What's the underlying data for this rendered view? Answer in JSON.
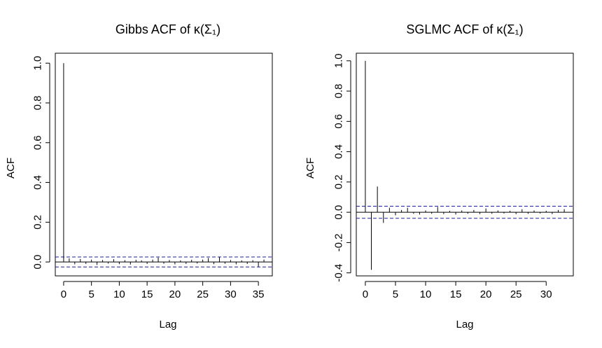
{
  "chart_data": [
    {
      "type": "bar",
      "title": "Gibbs ACF of κ(Σ₁)",
      "xlabel": "Lag",
      "ylabel": "ACF",
      "xlim": [
        -1.5,
        37.5
      ],
      "ylim": [
        -0.07,
        1.05
      ],
      "xticks": [
        0,
        5,
        10,
        15,
        20,
        25,
        30,
        35
      ],
      "yticks": [
        0.0,
        0.2,
        0.4,
        0.6,
        0.8,
        1.0
      ],
      "xtick_labels": [
        "0",
        "5",
        "10",
        "15",
        "20",
        "25",
        "30",
        "35"
      ],
      "ytick_labels": [
        "0.0",
        "0.2",
        "0.4",
        "0.6",
        "0.8",
        "1.0"
      ],
      "ci": [
        0.025,
        -0.025
      ],
      "lags": [
        0,
        1,
        2,
        3,
        4,
        5,
        6,
        7,
        8,
        9,
        10,
        11,
        12,
        13,
        14,
        15,
        16,
        17,
        18,
        19,
        20,
        21,
        22,
        23,
        24,
        25,
        26,
        27,
        28,
        29,
        30,
        31,
        32,
        33,
        34,
        35,
        36
      ],
      "values": [
        1.0,
        0.018,
        -0.012,
        0.015,
        -0.01,
        0.012,
        -0.015,
        0.01,
        -0.008,
        0.014,
        -0.011,
        0.009,
        -0.013,
        0.011,
        0.008,
        -0.01,
        0.012,
        0.022,
        -0.009,
        0.01,
        -0.012,
        0.008,
        -0.01,
        0.011,
        -0.008,
        0.012,
        0.02,
        -0.011,
        0.026,
        -0.009,
        0.01,
        -0.012,
        0.008,
        -0.01,
        0.009,
        -0.024,
        0.012
      ]
    },
    {
      "type": "bar",
      "title": "SGLMC ACF of κ(Σ₁)",
      "xlabel": "Lag",
      "ylabel": "ACF",
      "xlim": [
        -1.5,
        34.5
      ],
      "ylim": [
        -0.42,
        1.05
      ],
      "xticks": [
        0,
        5,
        10,
        15,
        20,
        25,
        30
      ],
      "yticks": [
        -0.4,
        -0.2,
        0.0,
        0.2,
        0.4,
        0.6,
        0.8,
        1.0
      ],
      "xtick_labels": [
        "0",
        "5",
        "10",
        "15",
        "20",
        "25",
        "30"
      ],
      "ytick_labels": [
        "-0.4",
        "-0.2",
        "0.0",
        "0.2",
        "0.4",
        "0.6",
        "0.8",
        "1.0"
      ],
      "ci": [
        0.04,
        -0.04
      ],
      "lags": [
        0,
        1,
        2,
        3,
        4,
        5,
        6,
        7,
        8,
        9,
        10,
        11,
        12,
        13,
        14,
        15,
        16,
        17,
        18,
        19,
        20,
        21,
        22,
        23,
        24,
        25,
        26,
        27,
        28,
        29,
        30,
        31,
        32,
        33
      ],
      "values": [
        1.0,
        -0.38,
        0.17,
        -0.07,
        0.03,
        -0.02,
        0.015,
        0.03,
        -0.01,
        -0.015,
        0.012,
        -0.01,
        0.035,
        -0.012,
        0.01,
        -0.015,
        0.012,
        -0.01,
        0.015,
        -0.012,
        0.025,
        -0.01,
        0.012,
        -0.008,
        0.01,
        -0.012,
        0.02,
        -0.01,
        0.012,
        -0.008,
        0.01,
        -0.012,
        0.015,
        0.02
      ]
    }
  ]
}
